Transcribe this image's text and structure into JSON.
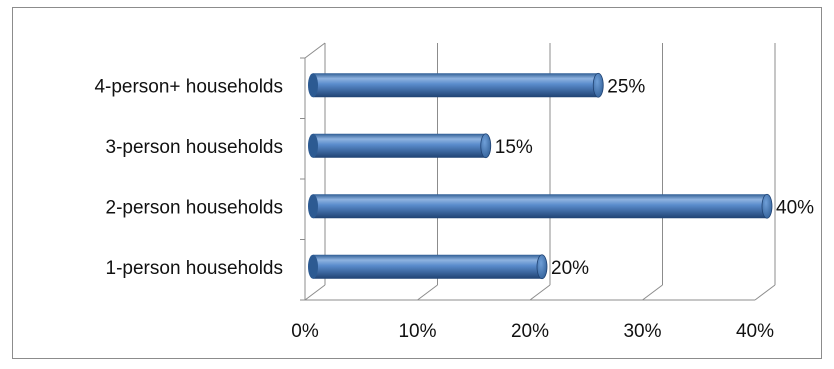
{
  "chart_data": {
    "type": "bar",
    "orientation": "horizontal",
    "style": "3d-cylinder",
    "categories": [
      "1-person households",
      "2-person households",
      "3-person households",
      "4-person+ households"
    ],
    "values": [
      20,
      40,
      15,
      25
    ],
    "data_labels": [
      "20%",
      "40%",
      "15%",
      "25%"
    ],
    "xlim": [
      0,
      40
    ],
    "x_ticks": [
      0,
      10,
      20,
      30,
      40
    ],
    "x_tick_labels": [
      "0%",
      "10%",
      "20%",
      "30%",
      "40%"
    ],
    "bar_color": "#4f81bd",
    "grid": true,
    "title": "",
    "xlabel": "",
    "ylabel": ""
  }
}
